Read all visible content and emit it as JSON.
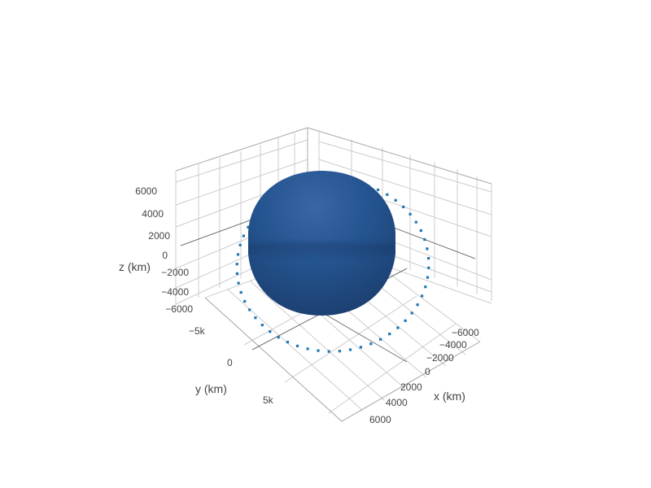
{
  "chart_data": {
    "type": "scatter3d",
    "title": "",
    "xaxis": {
      "title": "x (km)",
      "range": [
        -7000,
        7000
      ],
      "ticks": [
        "−6000",
        "−4000",
        "−2000",
        "0",
        "2000",
        "4000",
        "6000"
      ]
    },
    "yaxis": {
      "title": "y (km)",
      "range": [
        -7000,
        7000
      ],
      "ticks": [
        "−5k",
        "0",
        "5k"
      ]
    },
    "zaxis": {
      "title": "z (km)",
      "range": [
        -7000,
        7000
      ],
      "ticks": [
        "6000",
        "4000",
        "2000",
        "0",
        "−2000",
        "−4000",
        "−6000"
      ]
    },
    "series": [
      {
        "kind": "surface",
        "shape": "sphere",
        "radius": 6371,
        "center": [
          0,
          0,
          0
        ],
        "color": "#1f4e8c"
      },
      {
        "kind": "line",
        "style": "dotted",
        "color": "#1f77b4",
        "shape": "circular orbit",
        "radius": 6900,
        "center": [
          0,
          0,
          0
        ]
      }
    ],
    "grid": true,
    "legend": "none"
  },
  "colors": {
    "sphere_top": "#3a66a6",
    "sphere_mid": "#22528f",
    "sphere_bottom": "#1b3d70",
    "orbit": "#1f77b4",
    "grid": "#cccccc"
  }
}
